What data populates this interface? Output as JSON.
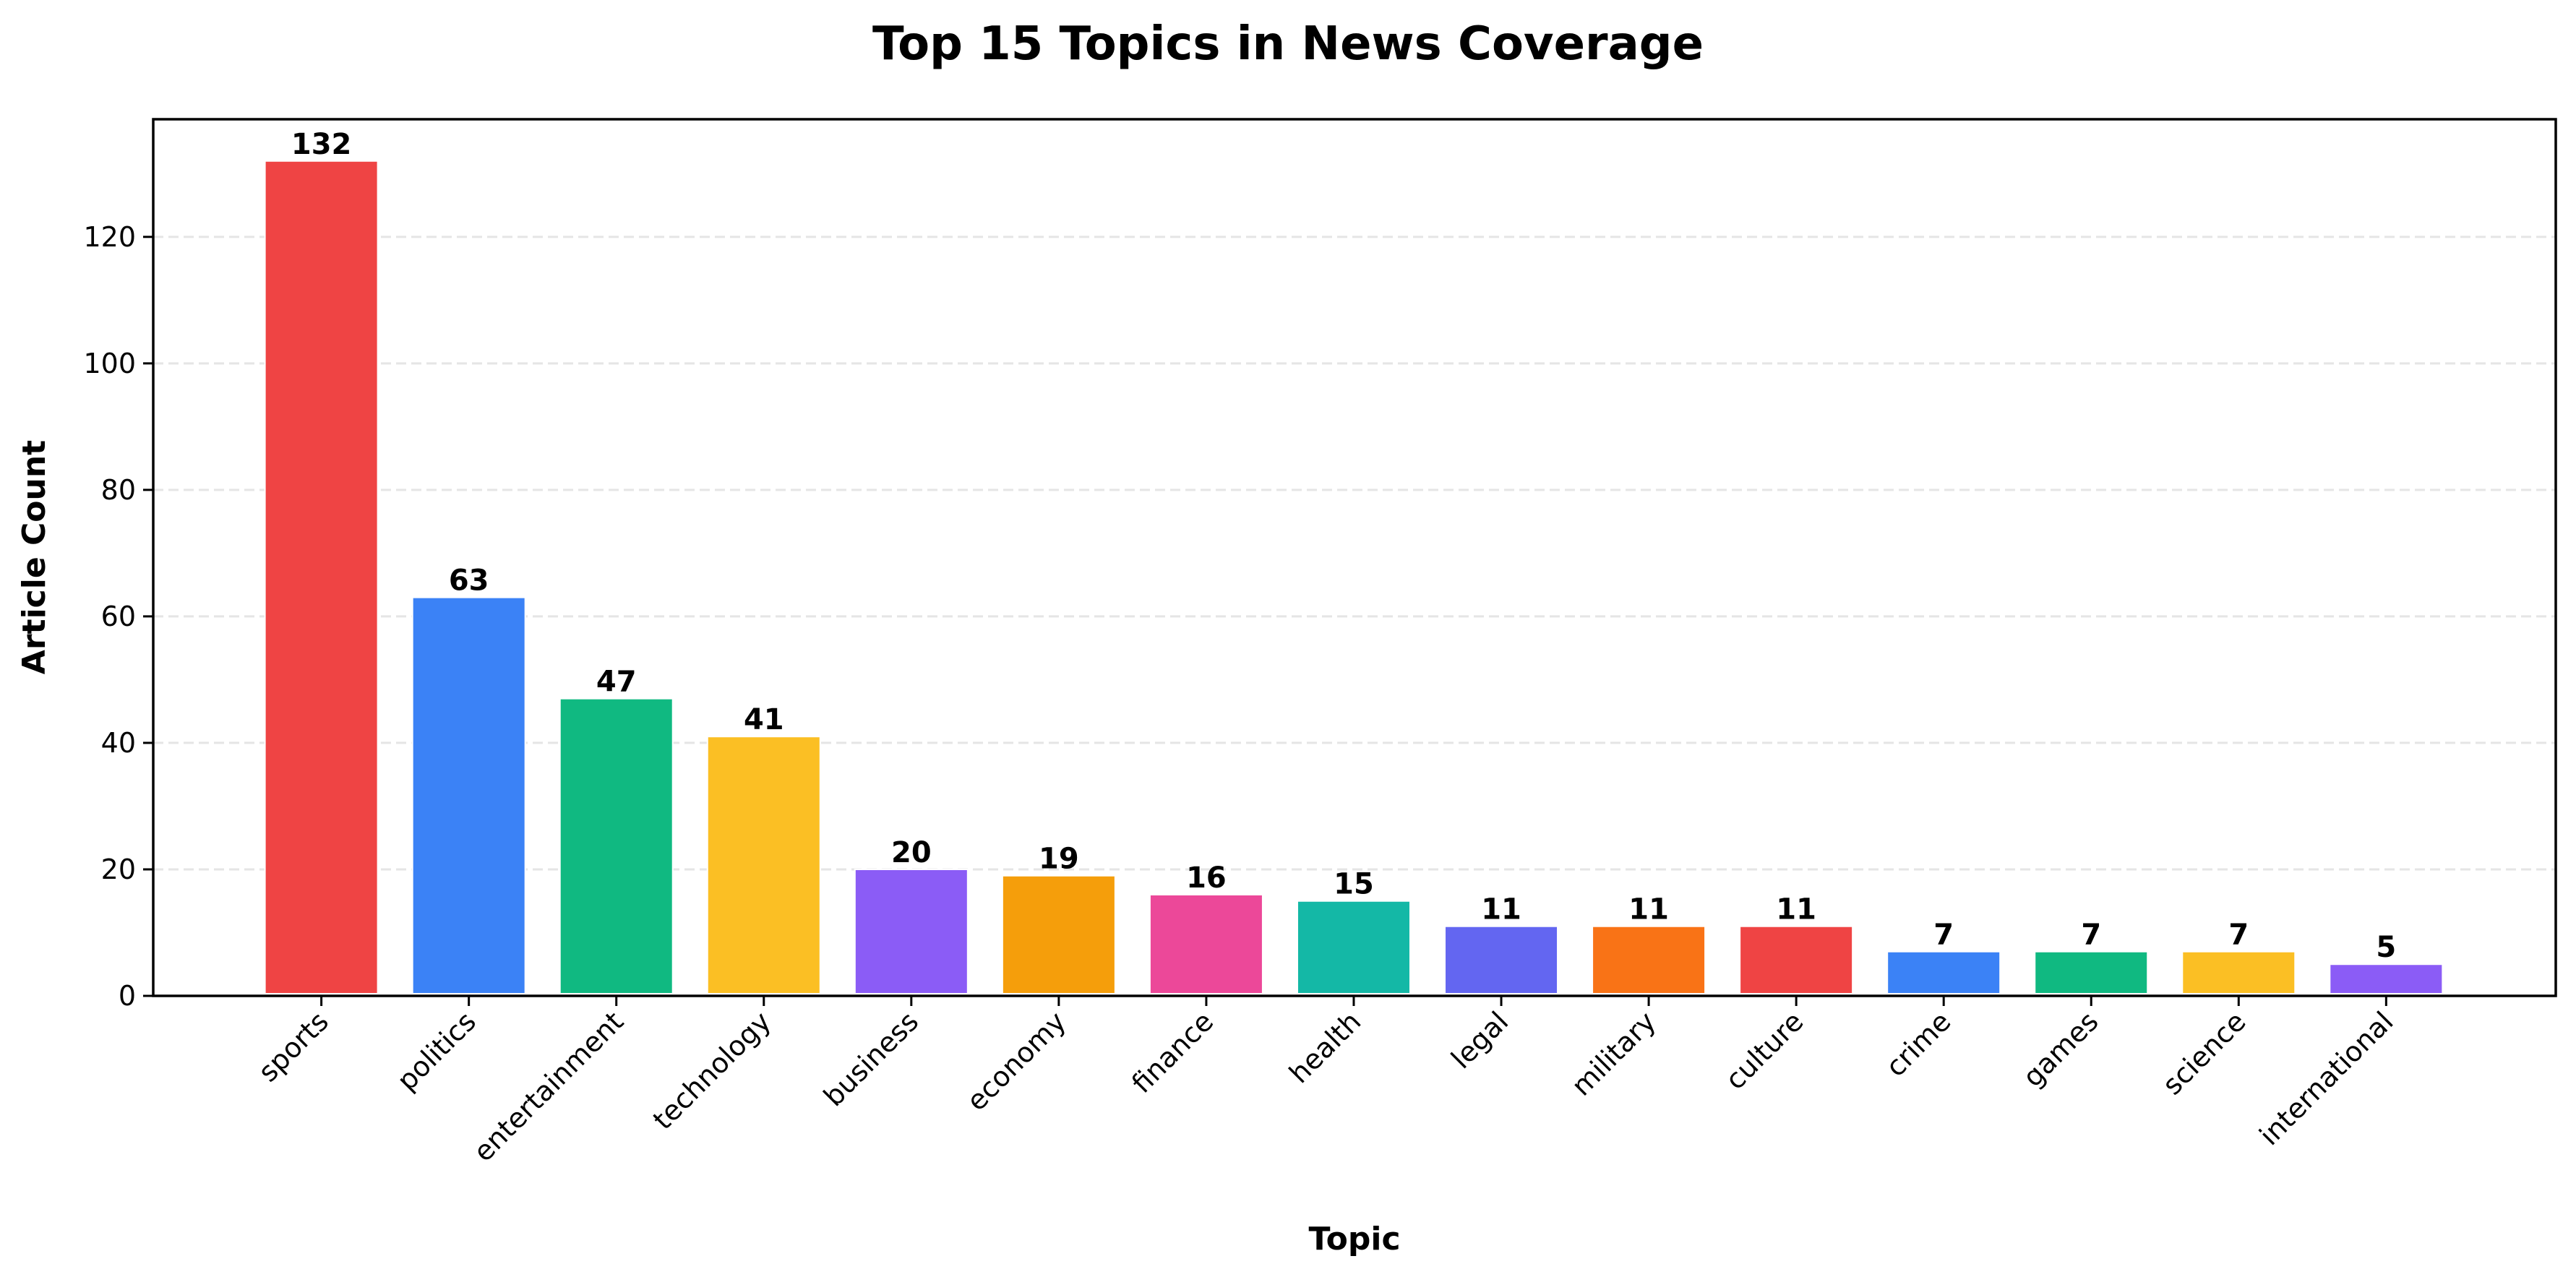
{
  "chart_data": {
    "type": "bar",
    "title": "Top 15 Topics in News Coverage",
    "xlabel": "Topic",
    "ylabel": "Article Count",
    "categories": [
      "sports",
      "politics",
      "entertainment",
      "technology",
      "business",
      "economy",
      "finance",
      "health",
      "legal",
      "military",
      "culture",
      "crime",
      "games",
      "science",
      "international"
    ],
    "values": [
      132,
      63,
      47,
      41,
      20,
      19,
      16,
      15,
      11,
      11,
      11,
      7,
      7,
      7,
      5
    ],
    "colors": [
      "#ef4444",
      "#3b82f6",
      "#10b981",
      "#fbbf24",
      "#8b5cf6",
      "#f59e0b",
      "#ec4899",
      "#14b8a6",
      "#6366f1",
      "#f97316",
      "#ef4444",
      "#3b82f6",
      "#10b981",
      "#fbbf24",
      "#8b5cf6"
    ],
    "ylim": [
      0,
      138.6
    ],
    "yticks": [
      0,
      20,
      40,
      60,
      80,
      100,
      120
    ],
    "grid": "y dashed",
    "legend": "none",
    "xtick_rotation": 45
  }
}
